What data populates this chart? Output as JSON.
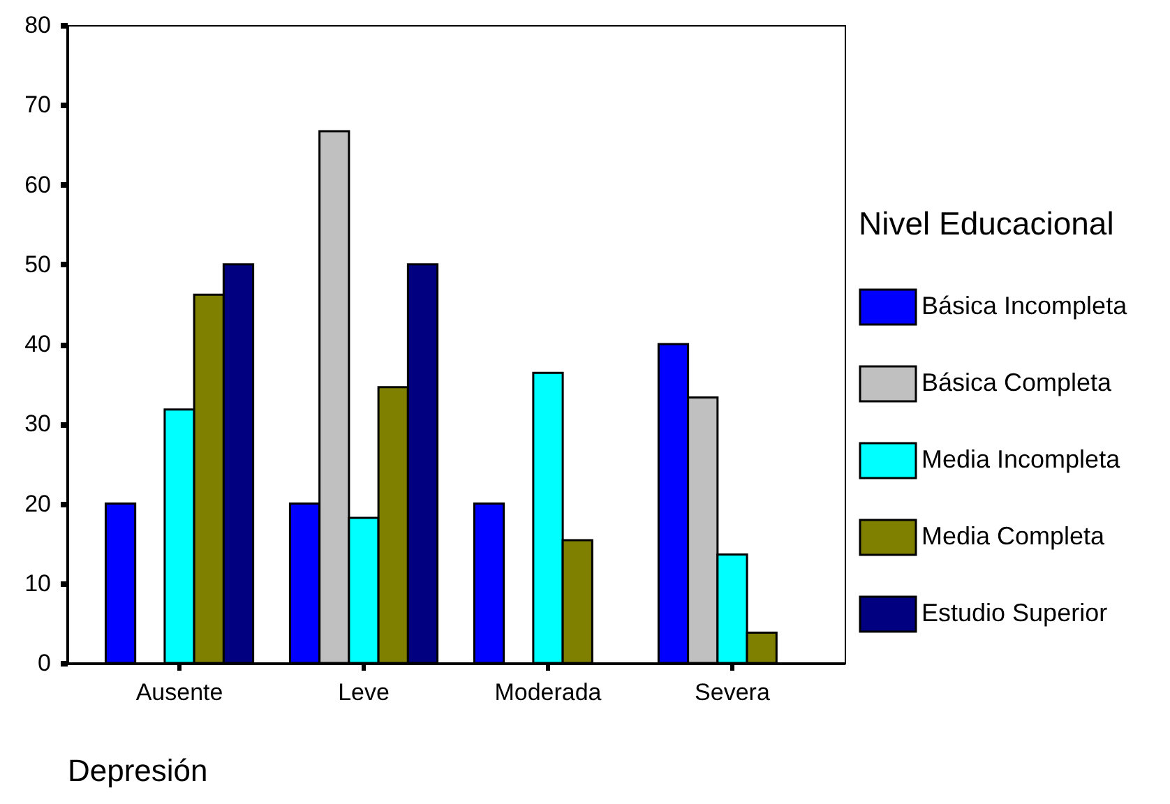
{
  "chart_data": {
    "type": "bar",
    "xlabel": "Depresión",
    "legend_title": "Nivel Educacional",
    "categories": [
      "Ausente",
      "Leve",
      "Moderada",
      "Severa"
    ],
    "series": [
      {
        "name": "Básica Incompleta",
        "color": "#0000ff",
        "values": [
          20,
          20,
          20,
          40
        ]
      },
      {
        "name": "Básica Completa",
        "color": "#c0c0c0",
        "values": [
          null,
          66.7,
          null,
          33.3
        ]
      },
      {
        "name": "Media Incompleta",
        "color": "#00ffff",
        "values": [
          31.8,
          18.2,
          36.4,
          13.6
        ]
      },
      {
        "name": "Media Completa",
        "color": "#808000",
        "values": [
          46.2,
          34.6,
          15.4,
          3.8
        ]
      },
      {
        "name": "Estudio Superior",
        "color": "#000080",
        "values": [
          50,
          50,
          null,
          null
        ]
      }
    ],
    "ylim": [
      0,
      80
    ],
    "yticks": [
      0,
      10,
      20,
      30,
      40,
      50,
      60,
      70,
      80
    ],
    "legend": "right"
  }
}
